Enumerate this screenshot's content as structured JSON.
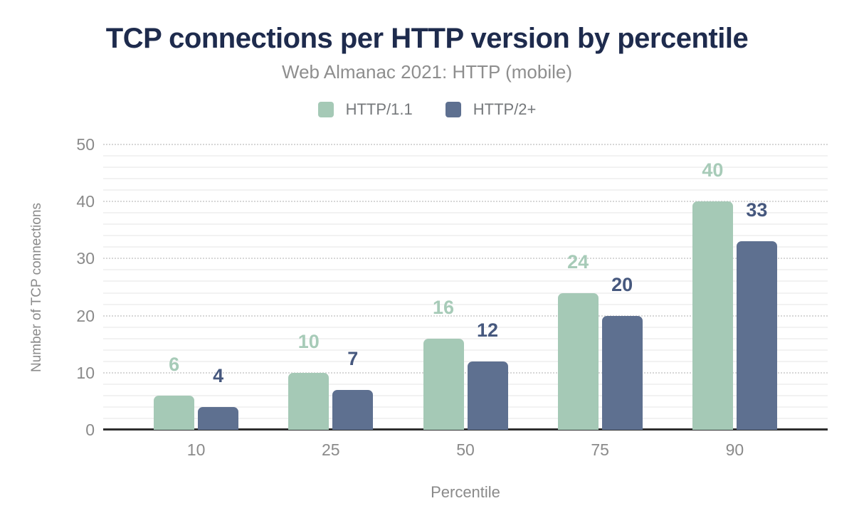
{
  "chart_data": {
    "type": "bar",
    "title": "TCP connections per HTTP version by percentile",
    "subtitle": "Web Almanac 2021: HTTP (mobile)",
    "xlabel": "Percentile",
    "ylabel": "Number of TCP connections",
    "categories": [
      "10",
      "25",
      "50",
      "75",
      "90"
    ],
    "series": [
      {
        "name": "HTTP/1.1",
        "values": [
          6,
          10,
          16,
          24,
          40
        ],
        "color": "#a5c9b6",
        "label_color": "#a7cbb8"
      },
      {
        "name": "HTTP/2+",
        "values": [
          4,
          7,
          12,
          20,
          33
        ],
        "color": "#5e7090",
        "label_color": "#46587e"
      }
    ],
    "ylim": [
      0,
      50
    ],
    "y_ticks": [
      0,
      10,
      20,
      30,
      40,
      50
    ],
    "minor_grid_step": 2,
    "grid": "major-dotted-minor-solid",
    "legend_position": "top"
  },
  "colors": {
    "title_text": "#1e2b4d",
    "subtitle_text": "#8e8e8e",
    "axis_text": "#8a8a8a",
    "legend_text": "#75787b",
    "axis_line": "#2e2e2e",
    "major_grid": "#d7d7d7",
    "minor_grid": "#f2f2f2",
    "background": "#ffffff"
  }
}
